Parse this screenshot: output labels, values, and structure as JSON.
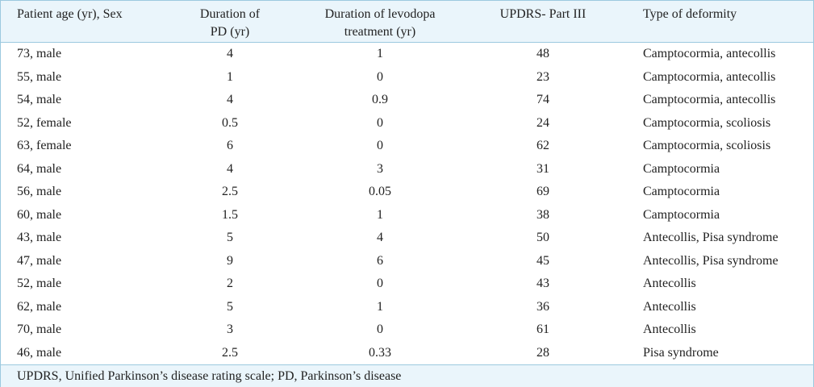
{
  "headers": [
    "Patient age (yr), Sex",
    "Duration of PD (yr)",
    "Duration of levodopa treatment (yr)",
    "UPDRS- Part III",
    "Type of deformity"
  ],
  "header_lines": {
    "col1": [
      "Duration of",
      "PD (yr)"
    ],
    "col2": [
      "Duration of levodopa",
      "treatment (yr)"
    ]
  },
  "rows": [
    [
      "73, male",
      "4",
      "1",
      "48",
      "Camptocormia, antecollis"
    ],
    [
      "55, male",
      "1",
      "0",
      "23",
      "Camptocormia, antecollis"
    ],
    [
      "54, male",
      "4",
      "0.9",
      "74",
      "Camptocormia, antecollis"
    ],
    [
      "52, female",
      "0.5",
      "0",
      "24",
      "Camptocormia, scoliosis"
    ],
    [
      "63, female",
      "6",
      "0",
      "62",
      "Camptocormia, scoliosis"
    ],
    [
      "64, male",
      "4",
      "3",
      "31",
      "Camptocormia"
    ],
    [
      "56, male",
      "2.5",
      "0.05",
      "69",
      "Camptocormia"
    ],
    [
      "60, male",
      "1.5",
      "1",
      "38",
      "Camptocormia"
    ],
    [
      "43, male",
      "5",
      "4",
      "50",
      "Antecollis, Pisa syndrome"
    ],
    [
      "47, male",
      "9",
      "6",
      "45",
      "Antecollis, Pisa syndrome"
    ],
    [
      "52, male",
      "2",
      "0",
      "43",
      "Antecollis"
    ],
    [
      "62, male",
      "5",
      "1",
      "36",
      "Antecollis"
    ],
    [
      "70, male",
      "3",
      "0",
      "61",
      "Antecollis"
    ],
    [
      "46, male",
      "2.5",
      "0.33",
      "28",
      "Pisa syndrome"
    ]
  ],
  "footnote": "UPDRS, Unified Parkinson’s disease rating scale; PD, Parkinson’s disease",
  "colors": {
    "header_bg": "#eaf5fb",
    "border": "#9cc9df",
    "text": "#222222"
  }
}
